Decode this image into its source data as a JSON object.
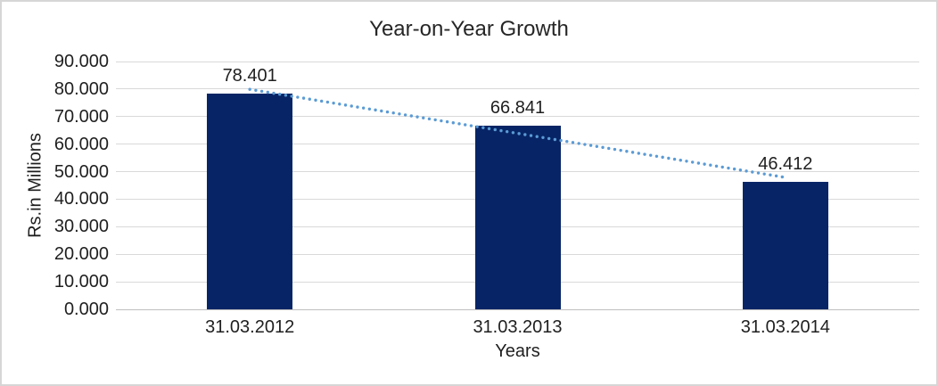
{
  "window": {
    "background": "#ffffff",
    "border_color": "#d6d6d6"
  },
  "chart_data": {
    "type": "bar",
    "title": "Year-on-Year Growth",
    "categories": [
      "31.03.2012",
      "31.03.2013",
      "31.03.2014"
    ],
    "values": [
      78.401,
      66.841,
      46.412
    ],
    "data_labels": [
      "78.401",
      "66.841",
      "46.412"
    ],
    "xlabel": "Years",
    "ylabel": "Rs.in Millions",
    "ylim": [
      0,
      90
    ],
    "ytick_step": 10,
    "ytick_labels": [
      "0.000",
      "10.000",
      "20.000",
      "30.000",
      "40.000",
      "50.000",
      "60.000",
      "70.000",
      "80.000",
      "90.000"
    ],
    "grid": true,
    "legend_position": "none",
    "colors": {
      "bar": "#072566",
      "gridline": "#d9d9d9",
      "axis_line": "#bfbfbf",
      "label_text": "#1f1f1f",
      "title_text": "#262626",
      "trendline": "#5b9bd5"
    },
    "trendline": {
      "type": "linear",
      "style": "dotted",
      "color": "#5b9bd5",
      "endpoint_values": [
        79.9,
        47.9
      ]
    }
  }
}
